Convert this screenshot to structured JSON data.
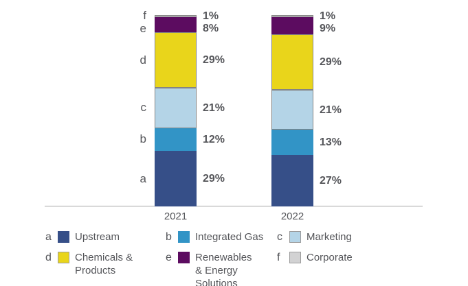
{
  "chart_data": {
    "type": "bar",
    "variant": "stacked-percentage-columns",
    "title": "",
    "xlabel": "",
    "ylabel": "",
    "ylim": [
      0,
      100
    ],
    "grid": false,
    "legend_position": "bottom",
    "unit": "%",
    "categories": [
      "2021",
      "2022"
    ],
    "series": [
      {
        "letter": "a",
        "name": "Upstream",
        "color": "#364f88",
        "bordered": false,
        "values": [
          29,
          27
        ]
      },
      {
        "letter": "b",
        "name": "Integrated Gas",
        "color": "#3294c6",
        "bordered": false,
        "values": [
          12,
          13
        ]
      },
      {
        "letter": "c",
        "name": "Marketing",
        "color": "#b4d4e7",
        "bordered": true,
        "values": [
          21,
          21
        ]
      },
      {
        "letter": "d",
        "name": "Chemicals & Products",
        "color": "#e9d51b",
        "bordered": true,
        "values": [
          29,
          29
        ]
      },
      {
        "letter": "e",
        "name": "Renewables & Energy Solutions",
        "color": "#5c0c60",
        "bordered": false,
        "values": [
          8,
          9
        ]
      },
      {
        "letter": "f",
        "name": "Corporate",
        "color": "#d2d2d3",
        "bordered": true,
        "values": [
          1,
          1
        ]
      }
    ]
  },
  "legend": {
    "items": [
      {
        "letter": "a",
        "lines": [
          "Upstream"
        ],
        "color": "#364f88",
        "bordered": false
      },
      {
        "letter": "b",
        "lines": [
          "Integrated Gas"
        ],
        "color": "#3294c6",
        "bordered": false
      },
      {
        "letter": "c",
        "lines": [
          "Marketing"
        ],
        "color": "#b4d4e7",
        "bordered": true
      },
      {
        "letter": "d",
        "lines": [
          "Chemicals &",
          "Products"
        ],
        "color": "#e9d51b",
        "bordered": true
      },
      {
        "letter": "e",
        "lines": [
          "Renewables",
          "& Energy Solutions"
        ],
        "color": "#5c0c60",
        "bordered": false
      },
      {
        "letter": "f",
        "lines": [
          "Corporate"
        ],
        "color": "#d2d2d3",
        "bordered": true
      }
    ]
  },
  "colors": {
    "text": "#55565a",
    "axis": "#a3a3a3",
    "segment_border": "#848484",
    "swatch_border": "#9b9b9b",
    "background": "#ffffff"
  }
}
